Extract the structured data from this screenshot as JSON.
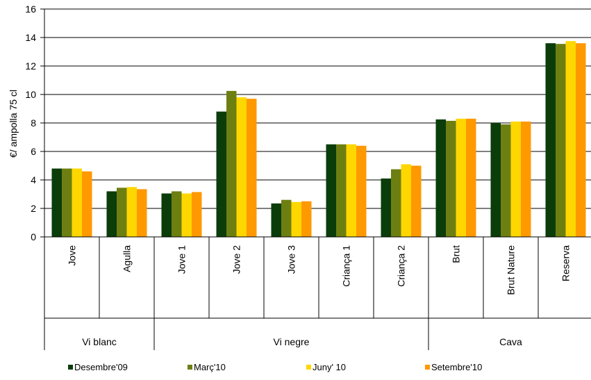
{
  "chart_data": {
    "type": "bar",
    "title": "",
    "ylabel": "€/ ampolla 75 cl",
    "ylim": [
      0,
      16
    ],
    "yticks": [
      0,
      2,
      4,
      6,
      8,
      10,
      12,
      14,
      16
    ],
    "grid": true,
    "legend_position": "bottom",
    "categories": [
      "Jove",
      "Agulla",
      "Jove 1",
      "Jove 2",
      "Jove 3",
      "Criança 1",
      "Criança 2",
      "Brut",
      "Brut Nature",
      "Reserva"
    ],
    "groups": [
      {
        "label": "Vi blanc",
        "start": 0,
        "count": 2
      },
      {
        "label": "Vi negre",
        "start": 2,
        "count": 5
      },
      {
        "label": "Cava",
        "start": 7,
        "count": 3
      }
    ],
    "series": [
      {
        "name": "Desembre'09",
        "color": "#0a3d0a",
        "values": [
          4.8,
          3.2,
          3.05,
          8.8,
          2.35,
          6.5,
          4.1,
          8.25,
          8.0,
          13.6
        ]
      },
      {
        "name": "Març'10",
        "color": "#6e7f12",
        "values": [
          4.8,
          3.45,
          3.2,
          10.25,
          2.6,
          6.5,
          4.75,
          8.15,
          7.9,
          13.55
        ]
      },
      {
        "name": "Juny' 10",
        "color": "#ffd700",
        "values": [
          4.8,
          3.5,
          3.05,
          9.8,
          2.45,
          6.5,
          5.1,
          8.3,
          8.1,
          13.75
        ]
      },
      {
        "name": "Setembre'10",
        "color": "#ff9900",
        "values": [
          4.6,
          3.35,
          3.15,
          9.7,
          2.5,
          6.4,
          5.0,
          8.3,
          8.1,
          13.6
        ]
      }
    ]
  }
}
